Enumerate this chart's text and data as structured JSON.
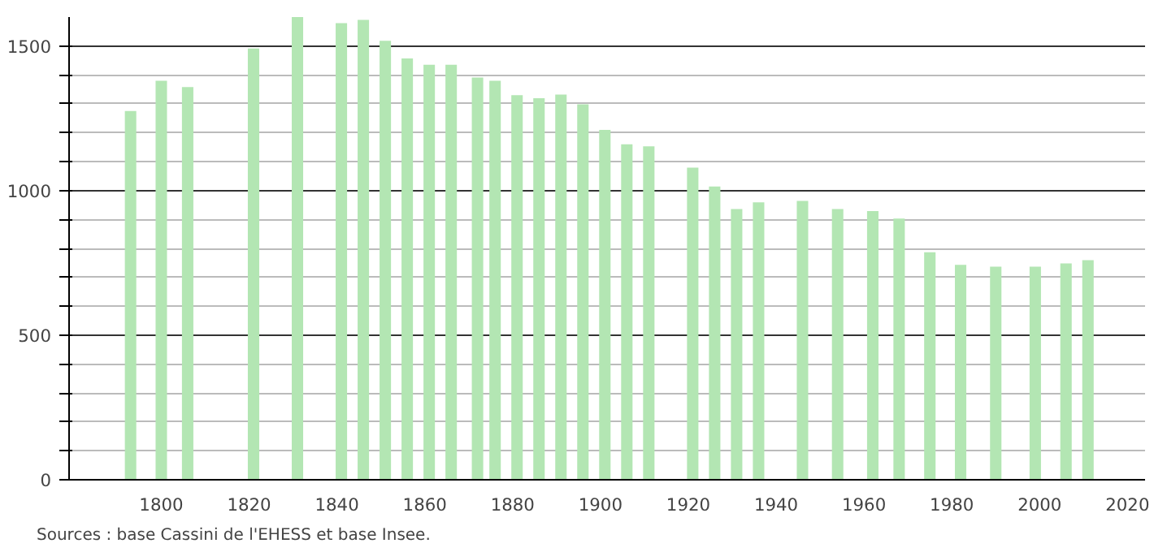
{
  "chart_data": {
    "type": "bar",
    "x": [
      1793,
      1800,
      1806,
      1821,
      1831,
      1841,
      1846,
      1851,
      1856,
      1861,
      1866,
      1872,
      1876,
      1881,
      1886,
      1891,
      1896,
      1901,
      1906,
      1911,
      1921,
      1926,
      1931,
      1936,
      1946,
      1954,
      1962,
      1968,
      1975,
      1982,
      1990,
      1999,
      2006,
      2011
    ],
    "values": [
      1275,
      1380,
      1358,
      1491,
      1600,
      1579,
      1590,
      1518,
      1457,
      1435,
      1435,
      1391,
      1380,
      1330,
      1319,
      1332,
      1298,
      1210,
      1160,
      1153,
      1079,
      1014,
      936,
      959,
      964,
      936,
      929,
      903,
      787,
      743,
      737,
      737,
      748,
      759
    ],
    "color": "#b3e6b3",
    "xlim": [
      1779,
      2024
    ],
    "xticks": [
      1800,
      1820,
      1840,
      1860,
      1880,
      1900,
      1920,
      1940,
      1960,
      1980,
      2000,
      2020
    ],
    "ylim": [
      0,
      1600
    ],
    "yticks": [
      0,
      {
        "value": 100,
        "label": null
      },
      {
        "value": 200,
        "label": null
      },
      {
        "value": 300,
        "label": null
      },
      {
        "value": 400,
        "label": null
      },
      500,
      {
        "value": 600,
        "label": null
      },
      {
        "value": 700,
        "label": null
      },
      {
        "value": 800,
        "label": null
      },
      {
        "value": 900,
        "label": null
      },
      1000,
      {
        "value": 1100,
        "label": null
      },
      {
        "value": 1200,
        "label": null
      },
      {
        "value": 1300,
        "label": null
      },
      {
        "value": 1400,
        "label": null
      },
      1500
    ],
    "grid": "y",
    "annotations": [
      "Sources : base Cassini de l'EHESS et base Insee."
    ]
  }
}
